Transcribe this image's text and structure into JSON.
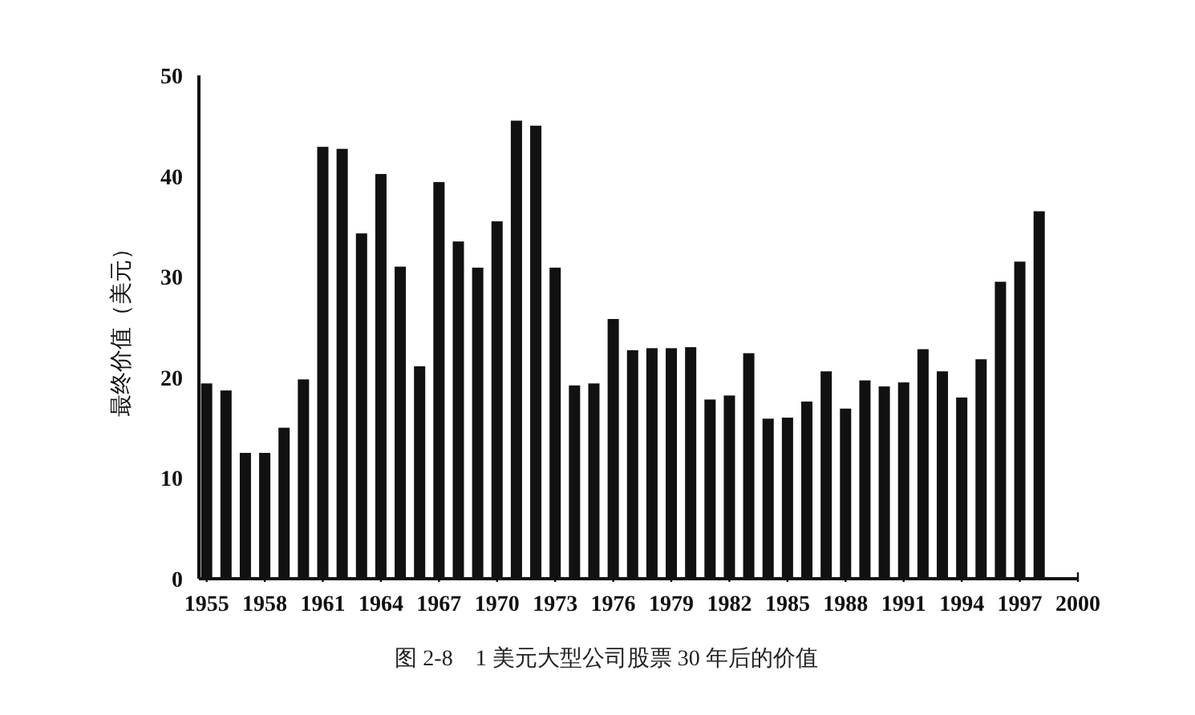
{
  "chart_data": {
    "type": "bar",
    "title": "图 2-8　1 美元大型公司股票 30 年后的价值",
    "ylabel": "最终价值（美元）",
    "x": [
      1955,
      1956,
      1957,
      1958,
      1959,
      1960,
      1961,
      1962,
      1963,
      1964,
      1965,
      1966,
      1967,
      1968,
      1969,
      1970,
      1971,
      1972,
      1973,
      1974,
      1975,
      1976,
      1977,
      1978,
      1979,
      1980,
      1981,
      1982,
      1983,
      1984,
      1985,
      1986,
      1987,
      1988,
      1989,
      1990,
      1991,
      1992,
      1993,
      1994,
      1995,
      1996,
      1997,
      1998
    ],
    "values": [
      19.4,
      18.7,
      12.5,
      12.5,
      15.0,
      19.8,
      42.9,
      42.7,
      34.3,
      40.2,
      31.0,
      21.1,
      39.4,
      33.5,
      30.9,
      35.5,
      45.5,
      45.0,
      30.9,
      19.2,
      19.4,
      25.8,
      22.7,
      22.9,
      22.9,
      23.0,
      17.8,
      18.2,
      22.4,
      15.9,
      16.0,
      17.6,
      20.6,
      16.9,
      19.7,
      19.1,
      19.5,
      22.8,
      20.6,
      18.0,
      21.8,
      29.5,
      31.5,
      36.5
    ],
    "color": "#111111",
    "xlim": [
      1954.6,
      2000
    ],
    "xticks": [
      1955,
      1958,
      1961,
      1964,
      1967,
      1970,
      1973,
      1976,
      1979,
      1982,
      1985,
      1988,
      1991,
      1994,
      1997,
      2000
    ],
    "ylim": [
      0,
      50
    ],
    "yticks": [
      0,
      10,
      20,
      30,
      40,
      50
    ],
    "grid": false
  }
}
